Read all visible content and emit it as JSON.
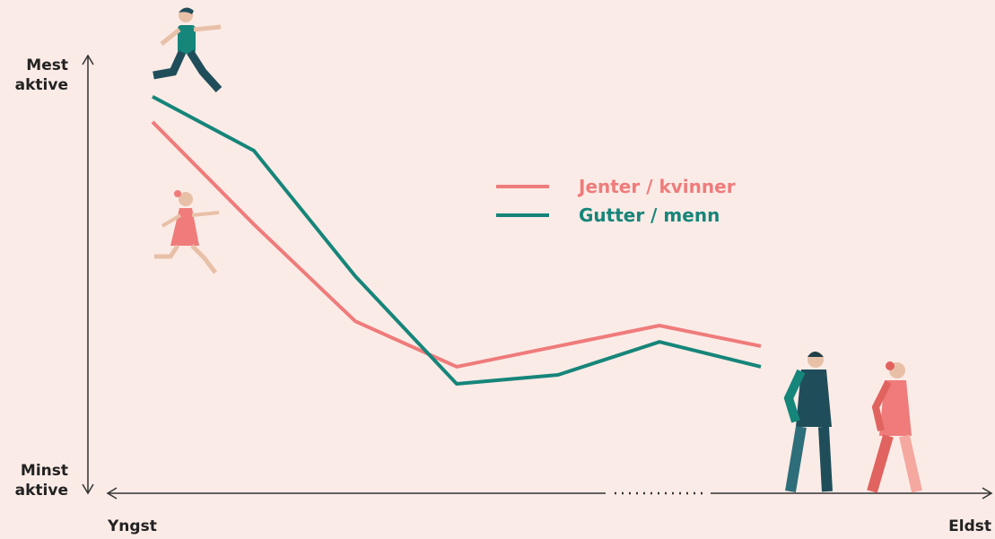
{
  "chart_data": {
    "type": "line",
    "y_label_top": "Mest aktive",
    "y_label_bottom": "Minst aktive",
    "x_label_left": "Yngst",
    "x_label_right": "Eldst",
    "categories": [
      null,
      null,
      null,
      null,
      null,
      null,
      null
    ],
    "ylim": [
      0,
      100
    ],
    "series": [
      {
        "name": "Jenter / kvinner",
        "color": "#ef7b7b",
        "values": [
          86.2,
          62.3,
          39.7,
          29.1,
          33.9,
          38.7,
          33.9
        ]
      },
      {
        "name": "Gutter / menn",
        "color": "#16857a",
        "values": [
          92.1,
          79.5,
          50.2,
          25.1,
          27.2,
          34.9,
          29.1
        ]
      }
    ]
  }
}
